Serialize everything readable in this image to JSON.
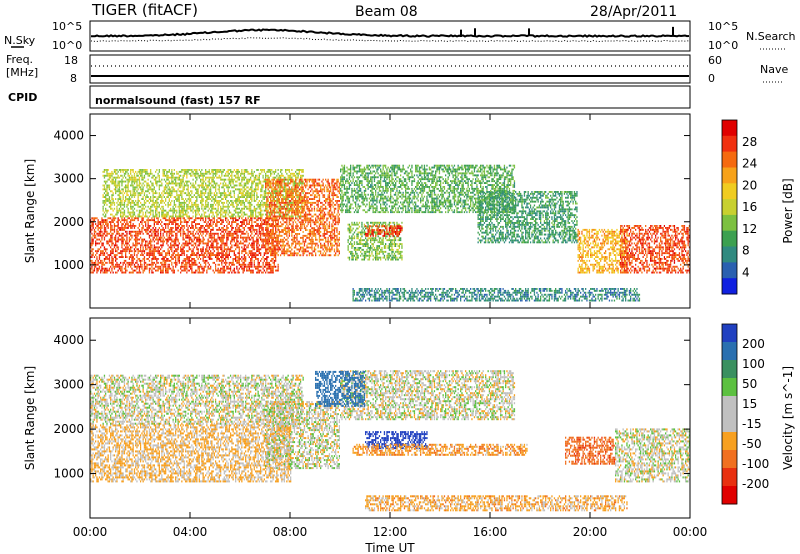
{
  "header": {
    "radar": "TIGER (fitACF)",
    "beam": "Beam 08",
    "date": "28/Apr/2011"
  },
  "top_strip": {
    "nsky_label": "N.Sky",
    "nsearch_label": "N.Search",
    "left_top": "10^5",
    "left_bottom": "10^0",
    "right_top": "10^5",
    "right_bottom": "10^0",
    "freq_label": "Freq.",
    "freq_unit": "[MHz]",
    "freq_ticks": [
      "18",
      "8"
    ],
    "nave_label": "Nave",
    "nave_ticks": [
      "60",
      "0"
    ],
    "cpid_label": "CPID",
    "cpid_value": "normalsound (fast) 157 RF"
  },
  "chart_data": [
    {
      "type": "heatmap",
      "name": "power",
      "ylabel": "Slant Range [km]",
      "yticks": [
        "4000",
        "3000",
        "2000",
        "1000"
      ],
      "ylim": [
        0,
        4500
      ],
      "xlim": [
        0,
        24
      ],
      "colorbar": {
        "label": "Power [dB]",
        "ticks": [
          "28",
          "24",
          "20",
          "16",
          "12",
          "8",
          "4"
        ],
        "colors": [
          "#e00000",
          "#f03010",
          "#f56a10",
          "#f7a21a",
          "#f0cc20",
          "#c8d030",
          "#7cc040",
          "#3ca050",
          "#308a80",
          "#2a60b0",
          "#1020e0"
        ]
      },
      "regions": [
        {
          "t0": 0.0,
          "t1": 7.5,
          "r0": 800,
          "r1": 2100,
          "level": 26
        },
        {
          "t0": 0.5,
          "t1": 8.5,
          "r0": 2100,
          "r1": 3200,
          "level": 14
        },
        {
          "t0": 7.0,
          "t1": 10.0,
          "r0": 1200,
          "r1": 3000,
          "level": 24
        },
        {
          "t0": 10.0,
          "t1": 17.0,
          "r0": 2200,
          "r1": 3300,
          "level": 10
        },
        {
          "t0": 10.3,
          "t1": 12.5,
          "r0": 1100,
          "r1": 2000,
          "level": 12
        },
        {
          "t0": 11.0,
          "t1": 12.5,
          "r0": 1650,
          "r1": 1900,
          "level": 27
        },
        {
          "t0": 15.5,
          "t1": 19.5,
          "r0": 1500,
          "r1": 2700,
          "level": 8
        },
        {
          "t0": 19.5,
          "t1": 21.5,
          "r0": 800,
          "r1": 1800,
          "level": 20
        },
        {
          "t0": 21.2,
          "t1": 24.0,
          "r0": 800,
          "r1": 1900,
          "level": 26
        },
        {
          "t0": 10.5,
          "t1": 22.0,
          "r0": 150,
          "r1": 450,
          "level": 6
        }
      ]
    },
    {
      "type": "heatmap",
      "name": "velocity",
      "ylabel": "Slant Range [km]",
      "yticks": [
        "4000",
        "3000",
        "2000",
        "1000"
      ],
      "ylim": [
        0,
        4500
      ],
      "xlim": [
        0,
        24
      ],
      "xticks": [
        "00:00",
        "04:00",
        "08:00",
        "12:00",
        "16:00",
        "20:00",
        "00:00"
      ],
      "xlabel": "Time UT",
      "colorbar": {
        "label": "Velocity [m s^-1]",
        "ticks": [
          "200",
          "100",
          "50",
          "15",
          "-15",
          "-50",
          "-100",
          "-200"
        ],
        "colors": [
          "#2040c0",
          "#2a70b0",
          "#3a9060",
          "#5cc040",
          "#c0c0c0",
          "#c0c0c0",
          "#f7a020",
          "#f07020",
          "#e83010",
          "#e00000"
        ]
      },
      "regions": [
        {
          "t0": 0.0,
          "t1": 8.0,
          "r0": 800,
          "r1": 2100,
          "level": -20
        },
        {
          "t0": 0.0,
          "t1": 8.5,
          "r0": 2100,
          "r1": 3200,
          "level": 0
        },
        {
          "t0": 7.0,
          "t1": 10.0,
          "r0": 1100,
          "r1": 2600,
          "level": 0
        },
        {
          "t0": 10.0,
          "t1": 17.0,
          "r0": 2200,
          "r1": 3300,
          "level": 0
        },
        {
          "t0": 11.0,
          "t1": 13.5,
          "r0": 1550,
          "r1": 1950,
          "level": 200
        },
        {
          "t0": 10.5,
          "t1": 17.5,
          "r0": 1400,
          "r1": 1650,
          "level": -40
        },
        {
          "t0": 19.0,
          "t1": 21.0,
          "r0": 1200,
          "r1": 1800,
          "level": -80
        },
        {
          "t0": 21.0,
          "t1": 24.0,
          "r0": 800,
          "r1": 2000,
          "level": 0
        },
        {
          "t0": 9.0,
          "t1": 11.0,
          "r0": 2500,
          "r1": 3300,
          "level": 120
        },
        {
          "t0": 11.0,
          "t1": 21.5,
          "r0": 150,
          "r1": 500,
          "level": -30
        }
      ]
    }
  ]
}
